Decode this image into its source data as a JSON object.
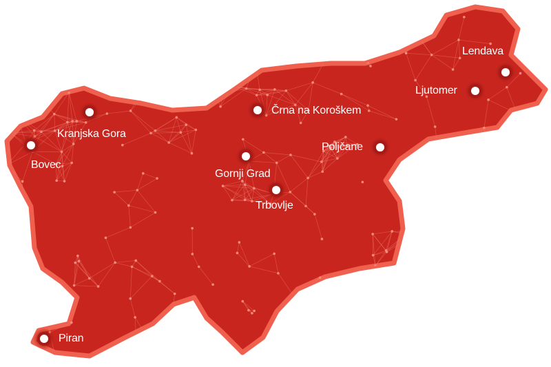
{
  "map": {
    "fill_color": "#c8251e",
    "border_color": "#f0604f",
    "marker_color": "#ffffff",
    "cities": [
      {
        "name": "Lendava"
      },
      {
        "name": "Ljutomer"
      },
      {
        "name": "Črna na Koroškem"
      },
      {
        "name": "Poljčane"
      },
      {
        "name": "Kranjska Gora"
      },
      {
        "name": "Bovec"
      },
      {
        "name": "Gornji Grad"
      },
      {
        "name": "Trbovlje"
      },
      {
        "name": "Piran"
      }
    ]
  }
}
